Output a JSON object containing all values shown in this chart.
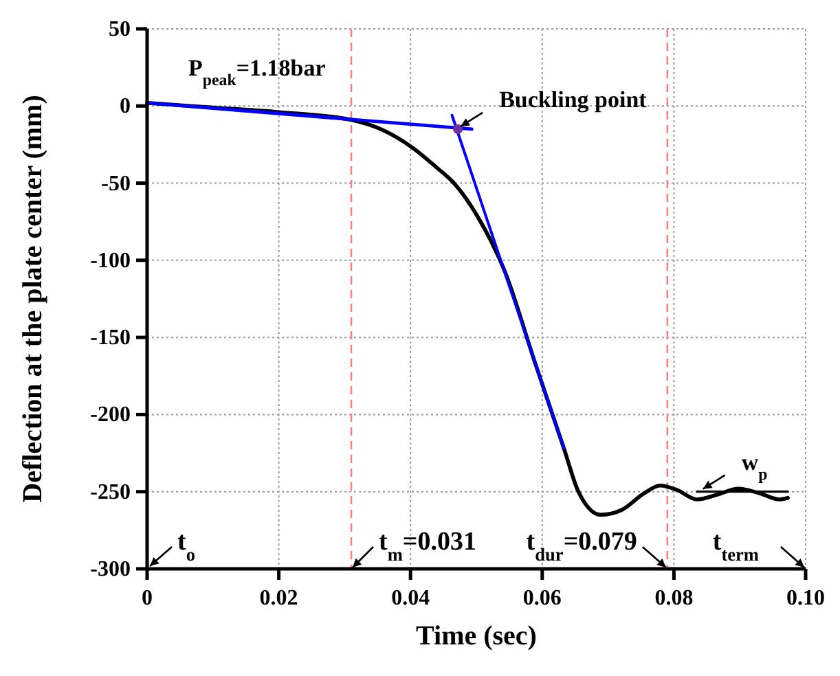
{
  "chart_data": {
    "type": "line",
    "xlabel": "Time (sec)",
    "ylabel": "Deflection at the plate center (mm)",
    "xlim": [
      0,
      0.1
    ],
    "xticks": [
      0,
      0.02,
      0.04,
      0.06,
      0.08,
      {
        "value": 0.1,
        "label": "0.10"
      }
    ],
    "ylim": [
      -300,
      50
    ],
    "yticks": [
      -300,
      -250,
      -200,
      -150,
      -100,
      -50,
      0,
      50
    ],
    "grid": true,
    "line_style": "solid",
    "marker": "none",
    "series": [
      {
        "color": "#000000",
        "x": [
          0,
          0.01,
          0.02,
          0.031,
          0.036,
          0.0403,
          0.044,
          0.0466,
          0.0501,
          0.0543,
          0.0588,
          0.0633,
          0.0655,
          0.0689,
          0.072,
          0.0755,
          0.0779,
          0.0805,
          0.0835,
          0.0865,
          0.0898,
          0.093,
          0.096,
          0.0973
        ],
        "values": [
          2,
          -1,
          -4,
          -9,
          -16,
          -27,
          -40,
          -50,
          -71,
          -107,
          -165,
          -222,
          -250,
          -265,
          -262,
          -251,
          -246,
          -249,
          -255,
          -252,
          -248,
          -251,
          -255,
          -254
        ]
      },
      {
        "color": "#0000ff",
        "x": [
          0,
          0.0493
        ],
        "values": [
          2,
          -15
        ]
      },
      {
        "color": "#0000ff",
        "x": [
          0.0463,
          0.0633
        ],
        "values": [
          -6,
          -222
        ]
      },
      {
        "color": "#000000",
        "x": [
          0.0835,
          0.0973
        ],
        "values": [
          -250,
          -250
        ]
      },
      {
        "type": "scatter",
        "color": "#7030a0",
        "marker": "circle",
        "x": [
          0.0472
        ],
        "values": [
          -15
        ]
      }
    ],
    "ref_lines": [
      {
        "axis": "x",
        "value": 0.031,
        "label": "t$_{m}$=0.031",
        "color": "#ff8080",
        "line_style": "dashed"
      },
      {
        "axis": "x",
        "value": 0.079,
        "label": "t$_{dur}$=0.079",
        "color": "#ff8080",
        "line_style": "dashed"
      }
    ],
    "annotations": [
      "P$_{peak}$=1.18bar",
      {
        "text": "Buckling point",
        "x": 0.0472,
        "y": -15
      },
      {
        "text": "w$_{p}$",
        "x": 0.084,
        "y": -250
      },
      "t$_{o}$",
      "t$_{term}$"
    ]
  }
}
